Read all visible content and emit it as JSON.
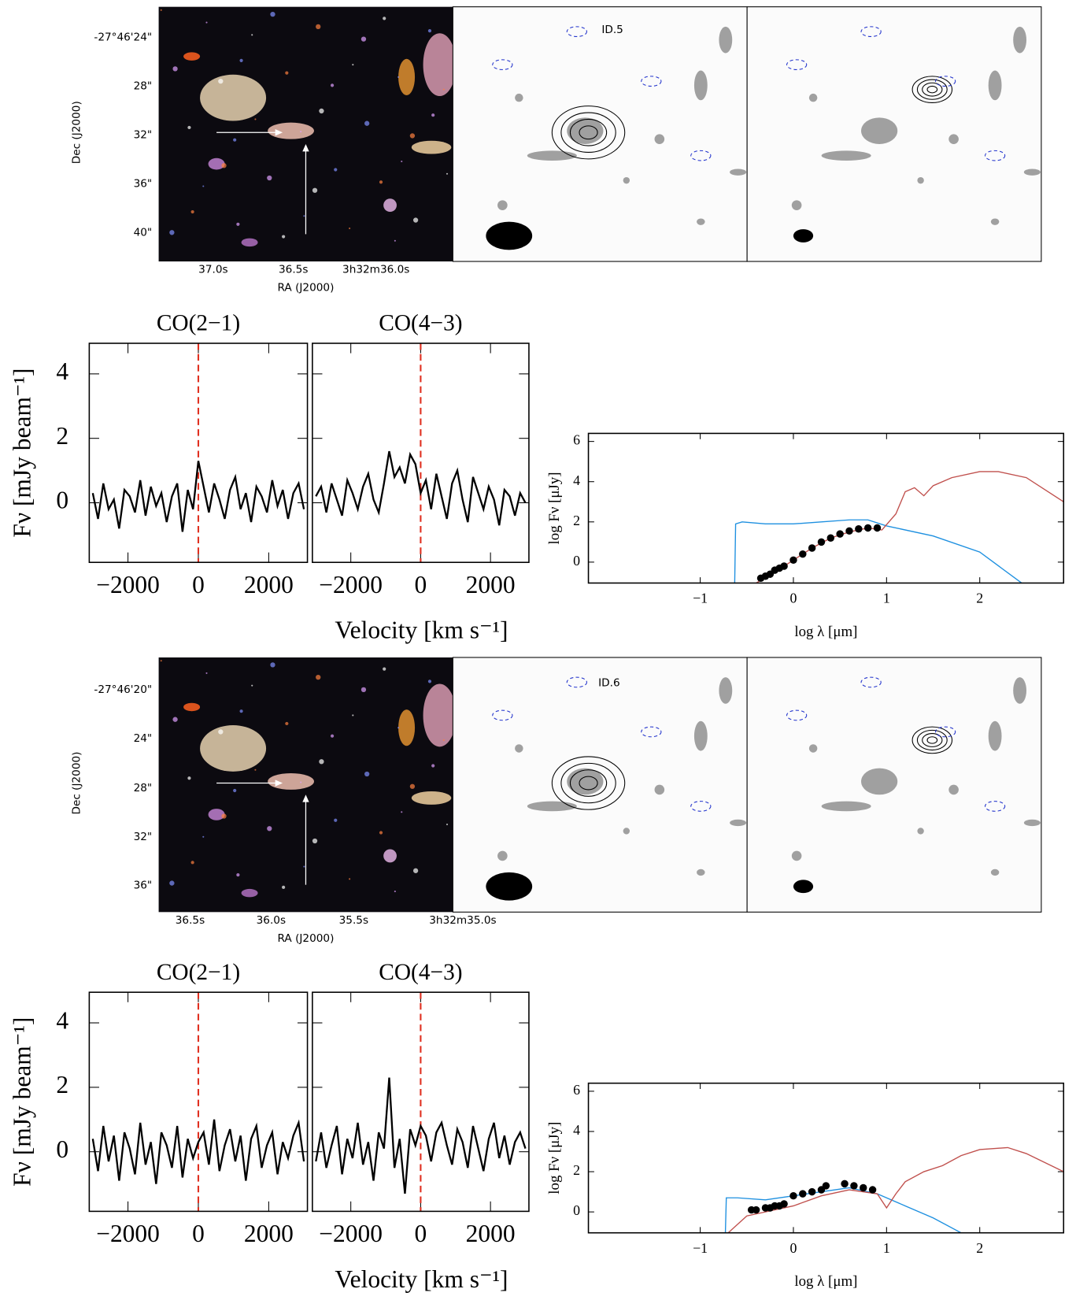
{
  "chart_data": [
    {
      "type": "image",
      "label": "ID.5",
      "ytick_labels": [
        "-27°46'24\"",
        "28\"",
        "32\"",
        "36\"",
        "40\""
      ],
      "xtick_labels": [
        "37.0s",
        "36.5s",
        "3h32m36.0s"
      ],
      "xlabel": "RA (J2000)",
      "ylabel": "Dec (J2000)"
    },
    {
      "type": "line",
      "title": "CO(2−1)",
      "ylabel": "Fν [mJy beam⁻¹]",
      "xlabel": "Velocity [km s⁻¹]",
      "x": [
        -3000,
        -2850,
        -2700,
        -2550,
        -2400,
        -2250,
        -2100,
        -1950,
        -1800,
        -1650,
        -1500,
        -1350,
        -1200,
        -1050,
        -900,
        -750,
        -600,
        -450,
        -300,
        -150,
        0,
        150,
        300,
        450,
        600,
        750,
        900,
        1050,
        1200,
        1350,
        1500,
        1650,
        1800,
        1950,
        2100,
        2250,
        2400,
        2550,
        2700,
        2850,
        3000
      ],
      "series": [
        {
          "color": "#000000",
          "values": [
            0.3,
            -0.5,
            0.6,
            -0.2,
            0.1,
            -0.8,
            0.4,
            0.2,
            -0.3,
            0.7,
            -0.4,
            0.5,
            -0.1,
            0.3,
            -0.6,
            0.2,
            0.6,
            -0.9,
            0.4,
            -0.2,
            1.3,
            0.5,
            -0.3,
            0.6,
            0.1,
            -0.5,
            0.4,
            0.8,
            -0.2,
            0.3,
            -0.6,
            0.5,
            0.2,
            -0.3,
            0.7,
            -0.1,
            0.4,
            -0.5,
            0.3,
            0.6,
            -0.2
          ]
        }
      ],
      "vline": 0,
      "vline_color": "#e03020",
      "xlim": [
        -3100,
        3100
      ],
      "ylim": [
        -1.85,
        4.95
      ],
      "xticks": [
        {
          "value": -2000,
          "label": "−2000"
        },
        0,
        2000
      ],
      "yticks": [
        0,
        2,
        4
      ],
      "show_ytick_labels": true
    },
    {
      "type": "line",
      "title": "CO(4−3)",
      "x": [
        -3000,
        -2850,
        -2700,
        -2550,
        -2400,
        -2250,
        -2100,
        -1950,
        -1800,
        -1650,
        -1500,
        -1350,
        -1200,
        -1050,
        -900,
        -750,
        -600,
        -450,
        -300,
        -150,
        0,
        150,
        300,
        450,
        600,
        750,
        900,
        1050,
        1200,
        1350,
        1500,
        1650,
        1800,
        1950,
        2100,
        2250,
        2400,
        2550,
        2700,
        2850,
        3000
      ],
      "series": [
        {
          "color": "#000000",
          "values": [
            0.2,
            0.5,
            -0.3,
            0.6,
            0.1,
            -0.4,
            0.7,
            0.3,
            -0.2,
            0.5,
            0.9,
            0.1,
            -0.3,
            0.6,
            1.6,
            0.8,
            1.1,
            0.6,
            1.5,
            1.2,
            0.3,
            0.7,
            -0.2,
            0.9,
            0.2,
            -0.5,
            0.6,
            1.0,
            0.1,
            -0.6,
            0.8,
            0.3,
            -0.2,
            0.5,
            0.1,
            -0.7,
            0.4,
            0.2,
            -0.4,
            0.3,
            0.0
          ]
        }
      ],
      "vline": 0,
      "vline_color": "#e03020",
      "xlim": [
        -3100,
        3100
      ],
      "ylim": [
        -1.85,
        4.95
      ],
      "xticks": [
        {
          "value": -2000,
          "label": "−2000"
        },
        0,
        2000
      ],
      "yticks": [
        0,
        2,
        4
      ],
      "show_ytick_labels": false
    },
    {
      "type": "line",
      "xlabel": "log λ [μm]",
      "ylabel": "log Fν [μJy]",
      "series": [
        {
          "color": "#1e90e0",
          "x": [
            -0.63,
            -0.62,
            -0.55,
            -0.3,
            0,
            0.3,
            0.6,
            0.8,
            1.0,
            1.5,
            2.0,
            2.45
          ],
          "values": [
            -1.04,
            1.9,
            2.0,
            1.9,
            1.9,
            2.0,
            2.1,
            2.1,
            1.8,
            1.3,
            0.5,
            -1.04
          ]
        },
        {
          "color": "#c0504d",
          "x": [
            -0.4,
            -0.2,
            0,
            0.2,
            0.4,
            0.6,
            0.8,
            0.95,
            1.1,
            1.2,
            1.3,
            1.4,
            1.5,
            1.7,
            2.0,
            2.2,
            2.5,
            2.9
          ],
          "values": [
            -1.04,
            -0.5,
            0.1,
            0.7,
            1.2,
            1.5,
            1.7,
            1.6,
            2.4,
            3.5,
            3.7,
            3.3,
            3.8,
            4.2,
            4.5,
            4.5,
            4.2,
            3.0
          ]
        },
        {
          "color": "#000000",
          "marker": "circle",
          "x": [
            -0.35,
            -0.3,
            -0.25,
            -0.2,
            -0.15,
            -0.1,
            0,
            0.1,
            0.2,
            0.3,
            0.4,
            0.5,
            0.6,
            0.7,
            0.8,
            0.9
          ],
          "values": [
            -0.8,
            -0.7,
            -0.6,
            -0.4,
            -0.3,
            -0.2,
            0.1,
            0.4,
            0.7,
            1.0,
            1.2,
            1.4,
            1.55,
            1.65,
            1.7,
            1.7
          ]
        }
      ],
      "xlim": [
        -2.2,
        2.9
      ],
      "ylim": [
        -1.04,
        6.4
      ],
      "xticks": [
        {
          "value": -1,
          "label": "−1"
        },
        0,
        1,
        2
      ],
      "yticks": [
        0,
        2,
        4,
        6
      ],
      "show_ytick_labels": true
    },
    {
      "type": "image",
      "label": "ID.6",
      "ytick_labels": [
        "-27°46'20\"",
        "24\"",
        "28\"",
        "32\"",
        "36\""
      ],
      "xtick_labels": [
        "36.5s",
        "36.0s",
        "35.5s",
        "3h32m35.0s"
      ],
      "xlabel": "RA (J2000)",
      "ylabel": "Dec (J2000)"
    },
    {
      "type": "line",
      "title": "CO(2−1)",
      "ylabel": "Fν [mJy beam⁻¹]",
      "xlabel": "Velocity [km s⁻¹]",
      "x": [
        -3000,
        -2850,
        -2700,
        -2550,
        -2400,
        -2250,
        -2100,
        -1950,
        -1800,
        -1650,
        -1500,
        -1350,
        -1200,
        -1050,
        -900,
        -750,
        -600,
        -450,
        -300,
        -150,
        0,
        150,
        300,
        450,
        600,
        750,
        900,
        1050,
        1200,
        1350,
        1500,
        1650,
        1800,
        1950,
        2100,
        2250,
        2400,
        2550,
        2700,
        2850,
        3000
      ],
      "series": [
        {
          "color": "#000000",
          "values": [
            0.4,
            -0.6,
            0.8,
            -0.3,
            0.5,
            -0.9,
            0.6,
            0.1,
            -0.7,
            0.9,
            -0.4,
            0.3,
            -1.0,
            0.6,
            0.2,
            -0.5,
            0.8,
            -0.8,
            0.4,
            -0.2,
            0.3,
            0.6,
            -0.4,
            1.0,
            -0.6,
            0.2,
            0.7,
            -0.3,
            0.5,
            -0.9,
            0.4,
            0.8,
            -0.5,
            0.2,
            0.6,
            -0.7,
            0.3,
            -0.2,
            0.5,
            0.9,
            -0.3
          ]
        }
      ],
      "vline": 0,
      "vline_color": "#e03020",
      "xlim": [
        -3100,
        3100
      ],
      "ylim": [
        -1.85,
        4.95
      ],
      "xticks": [
        {
          "value": -2000,
          "label": "−2000"
        },
        0,
        2000
      ],
      "yticks": [
        0,
        2,
        4
      ],
      "show_ytick_labels": true
    },
    {
      "type": "line",
      "title": "CO(4−3)",
      "x": [
        -3000,
        -2850,
        -2700,
        -2550,
        -2400,
        -2250,
        -2100,
        -1950,
        -1800,
        -1650,
        -1500,
        -1350,
        -1200,
        -1050,
        -900,
        -750,
        -600,
        -450,
        -300,
        -150,
        0,
        150,
        300,
        450,
        600,
        750,
        900,
        1050,
        1200,
        1350,
        1500,
        1650,
        1800,
        1950,
        2100,
        2250,
        2400,
        2550,
        2700,
        2850,
        3000
      ],
      "series": [
        {
          "color": "#000000",
          "values": [
            -0.3,
            0.6,
            -0.5,
            0.2,
            0.8,
            -0.7,
            0.4,
            -0.2,
            0.9,
            -0.4,
            0.3,
            -0.9,
            0.6,
            0.1,
            2.3,
            -0.5,
            0.4,
            -1.3,
            0.7,
            0.2,
            0.8,
            0.5,
            -0.3,
            0.6,
            0.9,
            0.2,
            -0.4,
            0.7,
            0.3,
            -0.5,
            0.8,
            0.1,
            -0.6,
            0.4,
            0.9,
            -0.2,
            0.5,
            -0.4,
            0.3,
            0.6,
            0.1
          ]
        }
      ],
      "vline": 0,
      "vline_color": "#e03020",
      "xlim": [
        -3100,
        3100
      ],
      "ylim": [
        -1.85,
        4.95
      ],
      "xticks": [
        {
          "value": -2000,
          "label": "−2000"
        },
        0,
        2000
      ],
      "yticks": [
        0,
        2,
        4
      ],
      "show_ytick_labels": false
    },
    {
      "type": "line",
      "xlabel": "log λ [μm]",
      "ylabel": "log Fν [μJy]",
      "series": [
        {
          "color": "#1e90e0",
          "x": [
            -0.73,
            -0.72,
            -0.6,
            -0.3,
            0,
            0.3,
            0.6,
            0.9,
            1.2,
            1.5,
            1.8
          ],
          "values": [
            -1.04,
            0.7,
            0.7,
            0.6,
            0.8,
            1.0,
            1.2,
            0.9,
            0.3,
            -0.3,
            -1.04
          ]
        },
        {
          "color": "#c0504d",
          "x": [
            -0.7,
            -0.5,
            -0.3,
            0,
            0.3,
            0.6,
            0.9,
            1.0,
            1.1,
            1.2,
            1.4,
            1.6,
            1.8,
            2.0,
            2.3,
            2.5,
            2.9
          ],
          "values": [
            -1.04,
            -0.2,
            0,
            0.3,
            0.8,
            1.1,
            0.9,
            0.2,
            0.9,
            1.5,
            2.0,
            2.3,
            2.8,
            3.1,
            3.2,
            2.9,
            2.0
          ]
        },
        {
          "color": "#000000",
          "marker": "circle",
          "x": [
            -0.45,
            -0.4,
            -0.3,
            -0.25,
            -0.2,
            -0.15,
            -0.1,
            0,
            0.1,
            0.2,
            0.3,
            0.35,
            0.55,
            0.65,
            0.75,
            0.85
          ],
          "values": [
            0.1,
            0.1,
            0.2,
            0.2,
            0.3,
            0.3,
            0.4,
            0.8,
            0.9,
            1.0,
            1.1,
            1.3,
            1.4,
            1.3,
            1.2,
            1.1
          ]
        }
      ],
      "xlim": [
        -2.2,
        2.9
      ],
      "ylim": [
        -1.04,
        6.4
      ],
      "xticks": [
        {
          "value": -1,
          "label": "−1"
        },
        0,
        1,
        2
      ],
      "yticks": [
        0,
        2,
        4,
        6
      ],
      "show_ytick_labels": true
    }
  ]
}
